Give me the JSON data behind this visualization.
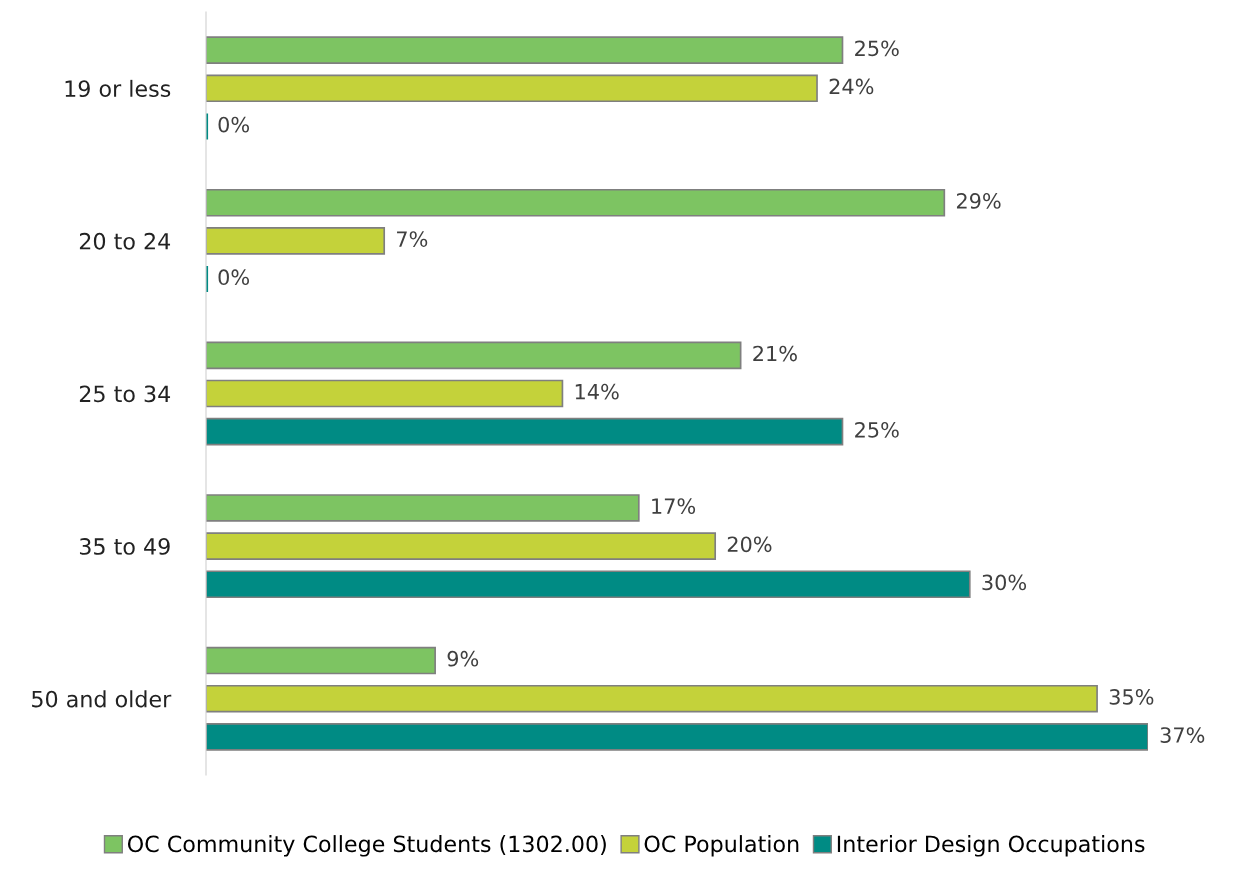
{
  "chart_data": {
    "type": "bar",
    "orientation": "horizontal",
    "categories": [
      "19 or less",
      "20 to 24",
      "25 to 34",
      "35 to 49",
      "50 and older"
    ],
    "series": [
      {
        "name": "OC Community College Students (1302.00)",
        "color": "#7dc462",
        "values": [
          25,
          29,
          21,
          17,
          9
        ],
        "value_labels": [
          "25%",
          "29%",
          "21%",
          "17%",
          "9%"
        ]
      },
      {
        "name": "OC Population",
        "color": "#c4d23a",
        "values": [
          24,
          7,
          14,
          20,
          35
        ],
        "value_labels": [
          "24%",
          "7%",
          "14%",
          "20%",
          "35%"
        ]
      },
      {
        "name": "Interior Design Occupations",
        "color": "#008b84",
        "values": [
          0,
          0,
          25,
          30,
          37
        ],
        "value_labels": [
          "0%",
          "0%",
          "25%",
          "30%",
          "37%"
        ]
      }
    ],
    "legend": "bottom",
    "grid": false,
    "tick_labels": "y"
  }
}
